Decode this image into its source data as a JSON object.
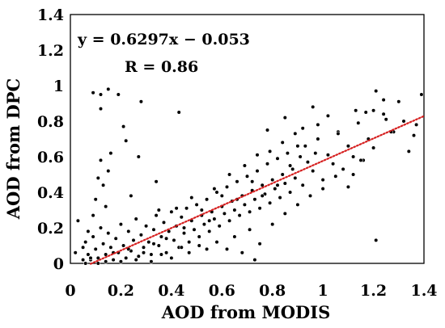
{
  "chart_data": {
    "type": "scatter",
    "xlabel": "AOD from MODIS",
    "ylabel": "AOD from DPC",
    "xlim": [
      0,
      1.4
    ],
    "ylim": [
      0,
      1.4
    ],
    "xticks": [
      "0",
      "0.2",
      "0.4",
      "0.6",
      "0.8",
      "1",
      "1.2",
      "1.4"
    ],
    "yticks": [
      "0",
      "0.2",
      "0.4",
      "0.6",
      "0.8",
      "1",
      "1.2",
      "1.4"
    ],
    "annotations": [
      "y = 0.6297x − 0.053",
      "R = 0.86"
    ],
    "grid": false,
    "fit_line": {
      "slope": 0.6297,
      "intercept": -0.053,
      "x_range": [
        0.08,
        1.4
      ],
      "color": "#d62020",
      "style": "dotted"
    },
    "point_color": "#000000",
    "series": [
      {
        "points": [
          [
            0.02,
            0.06
          ],
          [
            0.03,
            0.24
          ],
          [
            0.05,
            0.02
          ],
          [
            0.06,
            0.12
          ],
          [
            0.07,
            0.05
          ],
          [
            0.08,
            0.02
          ],
          [
            0.09,
            0.15
          ],
          [
            0.1,
            0.08
          ],
          [
            0.11,
            0.03
          ],
          [
            0.12,
            0.2
          ],
          [
            0.13,
            0.11
          ],
          [
            0.14,
            0.05
          ],
          [
            0.15,
            0.17
          ],
          [
            0.16,
            0.09
          ],
          [
            0.17,
            0.02
          ],
          [
            0.18,
            0.14
          ],
          [
            0.19,
            0.06
          ],
          [
            0.2,
            0.22
          ],
          [
            0.21,
            0.1
          ],
          [
            0.22,
            0.03
          ],
          [
            0.23,
            0.18
          ],
          [
            0.24,
            0.07
          ],
          [
            0.25,
            0.13
          ],
          [
            0.26,
            0.25
          ],
          [
            0.27,
            0.04
          ],
          [
            0.28,
            0.16
          ],
          [
            0.29,
            0.09
          ],
          [
            0.3,
            0.21
          ],
          [
            0.31,
            0.12
          ],
          [
            0.32,
            0.05
          ],
          [
            0.33,
            0.19
          ],
          [
            0.34,
            0.27
          ],
          [
            0.35,
            0.1
          ],
          [
            0.36,
            0.15
          ],
          [
            0.37,
            0.23
          ],
          [
            0.38,
            0.06
          ],
          [
            0.39,
            0.18
          ],
          [
            0.4,
            0.29
          ],
          [
            0.41,
            0.13
          ],
          [
            0.42,
            0.21
          ],
          [
            0.43,
            0.09
          ],
          [
            0.44,
            0.26
          ],
          [
            0.45,
            0.17
          ],
          [
            0.46,
            0.31
          ],
          [
            0.47,
            0.12
          ],
          [
            0.48,
            0.24
          ],
          [
            0.49,
            0.19
          ],
          [
            0.5,
            0.33
          ],
          [
            0.51,
            0.15
          ],
          [
            0.52,
            0.27
          ],
          [
            0.53,
            0.22
          ],
          [
            0.54,
            0.36
          ],
          [
            0.55,
            0.18
          ],
          [
            0.56,
            0.29
          ],
          [
            0.57,
            0.25
          ],
          [
            0.58,
            0.4
          ],
          [
            0.59,
            0.21
          ],
          [
            0.6,
            0.32
          ],
          [
            0.61,
            0.28
          ],
          [
            0.62,
            0.43
          ],
          [
            0.63,
            0.24
          ],
          [
            0.64,
            0.35
          ],
          [
            0.65,
            0.3
          ],
          [
            0.66,
            0.46
          ],
          [
            0.67,
            0.27
          ],
          [
            0.68,
            0.38
          ],
          [
            0.69,
            0.33
          ],
          [
            0.7,
            0.49
          ],
          [
            0.71,
            0.29
          ],
          [
            0.72,
            0.41
          ],
          [
            0.73,
            0.36
          ],
          [
            0.74,
            0.52
          ],
          [
            0.75,
            0.31
          ],
          [
            0.76,
            0.44
          ],
          [
            0.77,
            0.39
          ],
          [
            0.78,
            0.56
          ],
          [
            0.79,
            0.34
          ],
          [
            0.8,
            0.47
          ],
          [
            0.81,
            0.42
          ],
          [
            0.82,
            0.59
          ],
          [
            0.83,
            0.37
          ],
          [
            0.84,
            0.5
          ],
          [
            0.85,
            0.45
          ],
          [
            0.86,
            0.62
          ],
          [
            0.87,
            0.4
          ],
          [
            0.88,
            0.53
          ],
          [
            0.89,
            0.48
          ],
          [
            0.9,
            0.66
          ],
          [
            0.92,
            0.44
          ],
          [
            0.94,
            0.57
          ],
          [
            0.96,
            0.52
          ],
          [
            0.98,
            0.7
          ],
          [
            1.0,
            0.47
          ],
          [
            1.02,
            0.61
          ],
          [
            1.04,
            0.56
          ],
          [
            1.06,
            0.74
          ],
          [
            1.08,
            0.53
          ],
          [
            1.1,
            0.66
          ],
          [
            1.12,
            0.6
          ],
          [
            1.14,
            0.79
          ],
          [
            1.16,
            0.58
          ],
          [
            1.18,
            0.7
          ],
          [
            1.2,
            0.65
          ],
          [
            1.24,
            0.84
          ],
          [
            1.28,
            0.74
          ],
          [
            1.32,
            0.8
          ],
          [
            1.36,
            0.72
          ],
          [
            1.39,
            0.95
          ],
          [
            0.05,
            0.09
          ],
          [
            0.07,
            0.18
          ],
          [
            0.09,
            0.27
          ],
          [
            0.1,
            0.36
          ],
          [
            0.11,
            0.48
          ],
          [
            0.12,
            0.58
          ],
          [
            0.13,
            0.44
          ],
          [
            0.14,
            0.32
          ],
          [
            0.15,
            0.52
          ],
          [
            0.16,
            0.62
          ],
          [
            0.09,
            0.96
          ],
          [
            0.12,
            0.87
          ],
          [
            0.12,
            0.95
          ],
          [
            0.15,
            0.98
          ],
          [
            0.19,
            0.95
          ],
          [
            0.21,
            0.77
          ],
          [
            0.22,
            0.69
          ],
          [
            0.24,
            0.38
          ],
          [
            0.27,
            0.6
          ],
          [
            0.28,
            0.91
          ],
          [
            0.34,
            0.46
          ],
          [
            0.43,
            0.85
          ],
          [
            0.73,
            0.02
          ],
          [
            1.21,
            0.13
          ],
          [
            0.58,
            0.12
          ],
          [
            0.62,
            0.08
          ],
          [
            0.65,
            0.15
          ],
          [
            0.68,
            0.06
          ],
          [
            0.71,
            0.19
          ],
          [
            0.75,
            0.11
          ],
          [
            0.8,
            0.22
          ],
          [
            0.85,
            0.28
          ],
          [
            0.9,
            0.33
          ],
          [
            0.95,
            0.38
          ],
          [
            1.0,
            0.42
          ],
          [
            1.05,
            0.49
          ],
          [
            1.1,
            0.43
          ],
          [
            1.15,
            0.58
          ],
          [
            1.12,
            0.5
          ],
          [
            1.25,
            0.81
          ],
          [
            0.78,
            0.75
          ],
          [
            0.85,
            0.82
          ],
          [
            0.92,
            0.76
          ],
          [
            0.96,
            0.88
          ],
          [
            0.98,
            0.78
          ],
          [
            1.02,
            0.83
          ],
          [
            1.06,
            0.73
          ],
          [
            1.13,
            0.86
          ],
          [
            1.17,
            0.85
          ],
          [
            1.2,
            0.86
          ],
          [
            1.21,
            0.97
          ],
          [
            1.24,
            0.92
          ],
          [
            1.27,
            0.74
          ],
          [
            1.3,
            0.91
          ],
          [
            1.34,
            0.63
          ],
          [
            1.37,
            0.78
          ],
          [
            0.33,
            0.11
          ],
          [
            0.35,
            0.3
          ],
          [
            0.38,
            0.14
          ],
          [
            0.42,
            0.31
          ],
          [
            0.45,
            0.2
          ],
          [
            0.48,
            0.37
          ],
          [
            0.52,
            0.3
          ],
          [
            0.55,
            0.24
          ],
          [
            0.57,
            0.42
          ],
          [
            0.6,
            0.38
          ],
          [
            0.63,
            0.5
          ],
          [
            0.66,
            0.36
          ],
          [
            0.69,
            0.55
          ],
          [
            0.72,
            0.46
          ],
          [
            0.74,
            0.61
          ],
          [
            0.76,
            0.38
          ],
          [
            0.79,
            0.63
          ],
          [
            0.82,
            0.44
          ],
          [
            0.84,
            0.68
          ],
          [
            0.87,
            0.55
          ],
          [
            0.89,
            0.73
          ],
          [
            0.91,
            0.6
          ],
          [
            0.93,
            0.66
          ],
          [
            0.97,
            0.62
          ],
          [
            0.06,
            0.0
          ],
          [
            0.08,
            0.03
          ],
          [
            0.11,
            0.0
          ],
          [
            0.14,
            0.01
          ],
          [
            0.17,
            0.06
          ],
          [
            0.2,
            0.01
          ],
          [
            0.23,
            0.08
          ],
          [
            0.26,
            0.02
          ],
          [
            0.29,
            0.06
          ],
          [
            0.32,
            0.01
          ],
          [
            0.36,
            0.05
          ],
          [
            0.4,
            0.03
          ],
          [
            0.44,
            0.09
          ],
          [
            0.47,
            0.06
          ],
          [
            0.51,
            0.1
          ],
          [
            0.54,
            0.08
          ]
        ]
      }
    ]
  }
}
